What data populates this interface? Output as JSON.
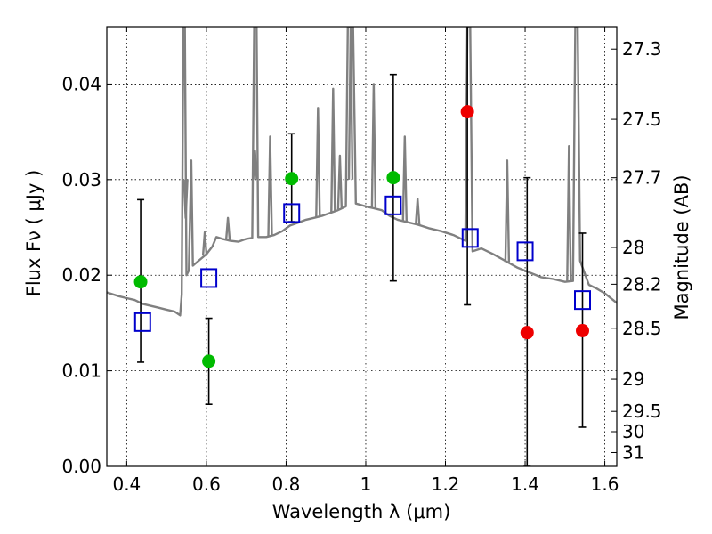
{
  "chart_data": {
    "type": "scatter",
    "title": "",
    "xlabel": "Wavelength  λ (μm)",
    "ylabel": "Flux  Fν  ( μJy )",
    "y2label": "Magnitude (AB)",
    "xlim": [
      0.35,
      1.63
    ],
    "ylim": [
      0.0,
      0.046
    ],
    "grid": true,
    "colors": {
      "spectrum": "#808080",
      "green_points": "#00bb00",
      "red_points": "#ee0000",
      "model_boxes": "#0000cc",
      "errorbars": "#000000"
    },
    "x_ticks": [
      {
        "value": 0.4,
        "label": "0.4"
      },
      {
        "value": 0.6,
        "label": "0.6"
      },
      {
        "value": 0.8,
        "label": "0.8"
      },
      {
        "value": 1.0,
        "label": "1"
      },
      {
        "value": 1.2,
        "label": "1.2"
      },
      {
        "value": 1.4,
        "label": "1.4"
      },
      {
        "value": 1.6,
        "label": "1.6"
      }
    ],
    "y_ticks": [
      {
        "value": 0.0,
        "label": "0.00"
      },
      {
        "value": 0.01,
        "label": "0.01"
      },
      {
        "value": 0.02,
        "label": "0.02"
      },
      {
        "value": 0.03,
        "label": "0.03"
      },
      {
        "value": 0.04,
        "label": "0.04"
      }
    ],
    "y2_ticks": [
      {
        "mag": 27.3,
        "label": "27.3"
      },
      {
        "mag": 27.5,
        "label": "27.5"
      },
      {
        "mag": 27.7,
        "label": "27.7"
      },
      {
        "mag": 28.0,
        "label": "28"
      },
      {
        "mag": 28.2,
        "label": "28.2"
      },
      {
        "mag": 28.5,
        "label": "28.5"
      },
      {
        "mag": 29.0,
        "label": "29"
      },
      {
        "mag": 29.5,
        "label": "29.5"
      },
      {
        "mag": 30.0,
        "label": "30"
      },
      {
        "mag": 31.0,
        "label": "31"
      }
    ],
    "observed_detections": [
      {
        "x": 0.435,
        "y": 0.0193,
        "err_low": 0.0109,
        "err_high": 0.0279
      },
      {
        "x": 0.606,
        "y": 0.011,
        "err_low": 0.0065,
        "err_high": 0.0155
      },
      {
        "x": 0.814,
        "y": 0.0301,
        "err_low": 0.0256,
        "err_high": 0.0348
      },
      {
        "x": 1.069,
        "y": 0.0302,
        "err_low": 0.0194,
        "err_high": 0.041
      }
    ],
    "observed_weak": [
      {
        "x": 1.255,
        "y": 0.0371,
        "err_low": 0.0169,
        "err_high": 0.046
      },
      {
        "x": 1.405,
        "y": 0.014,
        "err_low": 0.0,
        "err_high": 0.0302
      },
      {
        "x": 1.544,
        "y": 0.0142,
        "err_low": 0.0041,
        "err_high": 0.0244
      }
    ],
    "model_photometry": [
      {
        "x": 0.44,
        "y": 0.0151
      },
      {
        "x": 0.606,
        "y": 0.0197
      },
      {
        "x": 0.814,
        "y": 0.0265
      },
      {
        "x": 1.069,
        "y": 0.0273
      },
      {
        "x": 1.262,
        "y": 0.0239
      },
      {
        "x": 1.4,
        "y": 0.0225
      },
      {
        "x": 1.544,
        "y": 0.0174
      }
    ],
    "spectrum": [
      [
        0.35,
        0.0182
      ],
      [
        0.365,
        0.018
      ],
      [
        0.38,
        0.0178
      ],
      [
        0.4,
        0.0176
      ],
      [
        0.42,
        0.0174
      ],
      [
        0.44,
        0.017
      ],
      [
        0.46,
        0.0168
      ],
      [
        0.48,
        0.0166
      ],
      [
        0.5,
        0.0164
      ],
      [
        0.52,
        0.0162
      ],
      [
        0.534,
        0.0158
      ],
      [
        0.538,
        0.018
      ],
      [
        0.542,
        0.046
      ],
      [
        0.546,
        0.046
      ],
      [
        0.55,
        0.02
      ],
      [
        0.556,
        0.0205
      ],
      [
        0.562,
        0.032
      ],
      [
        0.566,
        0.021
      ],
      [
        0.58,
        0.0215
      ],
      [
        0.6,
        0.0222
      ],
      [
        0.615,
        0.023
      ],
      [
        0.625,
        0.024
      ],
      [
        0.64,
        0.0238
      ],
      [
        0.66,
        0.0236
      ],
      [
        0.68,
        0.0235
      ],
      [
        0.7,
        0.0238
      ],
      [
        0.715,
        0.0239
      ],
      [
        0.72,
        0.046
      ],
      [
        0.726,
        0.046
      ],
      [
        0.73,
        0.024
      ],
      [
        0.75,
        0.024
      ],
      [
        0.77,
        0.0242
      ],
      [
        0.79,
        0.0246
      ],
      [
        0.81,
        0.0252
      ],
      [
        0.83,
        0.0255
      ],
      [
        0.85,
        0.0258
      ],
      [
        0.87,
        0.026
      ],
      [
        0.89,
        0.0262
      ],
      [
        0.91,
        0.0265
      ],
      [
        0.93,
        0.0268
      ],
      [
        0.95,
        0.0272
      ],
      [
        0.955,
        0.046
      ],
      [
        0.962,
        0.046
      ],
      [
        0.968,
        0.046
      ],
      [
        0.975,
        0.0275
      ],
      [
        1.0,
        0.0272
      ],
      [
        1.02,
        0.027
      ],
      [
        1.04,
        0.0268
      ],
      [
        1.06,
        0.0262
      ],
      [
        1.08,
        0.0258
      ],
      [
        1.1,
        0.0256
      ],
      [
        1.13,
        0.0253
      ],
      [
        1.16,
        0.0249
      ],
      [
        1.19,
        0.0246
      ],
      [
        1.22,
        0.0242
      ],
      [
        1.25,
        0.0236
      ],
      [
        1.255,
        0.046
      ],
      [
        1.262,
        0.046
      ],
      [
        1.268,
        0.0225
      ],
      [
        1.29,
        0.0228
      ],
      [
        1.32,
        0.0222
      ],
      [
        1.35,
        0.0215
      ],
      [
        1.38,
        0.0208
      ],
      [
        1.41,
        0.0203
      ],
      [
        1.44,
        0.0198
      ],
      [
        1.47,
        0.0196
      ],
      [
        1.5,
        0.0193
      ],
      [
        1.52,
        0.0194
      ],
      [
        1.526,
        0.046
      ],
      [
        1.532,
        0.046
      ],
      [
        1.538,
        0.0215
      ],
      [
        1.56,
        0.019
      ],
      [
        1.58,
        0.0186
      ],
      [
        1.6,
        0.0181
      ],
      [
        1.63,
        0.0171
      ]
    ],
    "emission_lines": [
      [
        0.548,
        0.026
      ],
      [
        0.596,
        0.0245
      ],
      [
        0.654,
        0.026
      ],
      [
        0.722,
        0.033
      ],
      [
        0.76,
        0.0345
      ],
      [
        0.88,
        0.0375
      ],
      [
        0.918,
        0.0395
      ],
      [
        0.935,
        0.0325
      ],
      [
        0.962,
        0.046
      ],
      [
        1.02,
        0.04
      ],
      [
        1.098,
        0.0345
      ],
      [
        1.13,
        0.028
      ],
      [
        1.355,
        0.032
      ],
      [
        1.51,
        0.0335
      ]
    ]
  }
}
